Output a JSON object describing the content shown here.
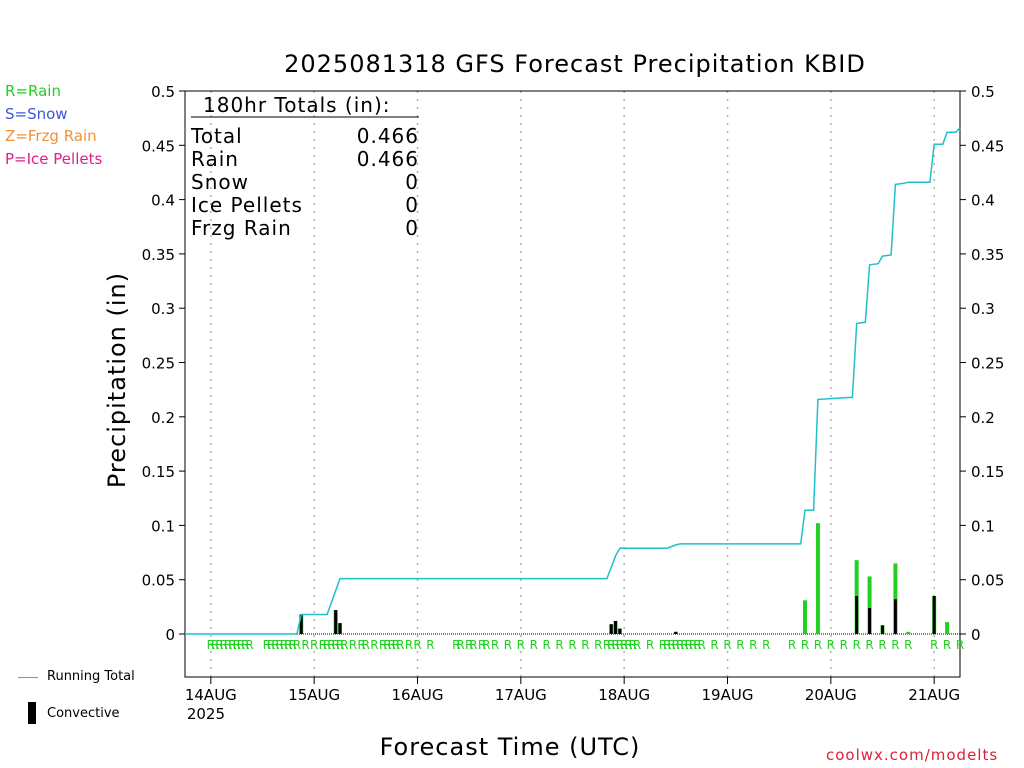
{
  "title": "2025081318 GFS Forecast Precipitation KBID",
  "xlabel": "Forecast Time (UTC)",
  "ylabel": "Precipitation (in)",
  "credit": "coolwx.com/modelts",
  "precip_key": [
    {
      "label": "R=Rain",
      "color": "#22d022"
    },
    {
      "label": "S=Snow",
      "color": "#3a55e0"
    },
    {
      "label": "Z=Frzg Rain",
      "color": "#f0903a"
    },
    {
      "label": "P=Ice Pellets",
      "color": "#e0208a"
    }
  ],
  "legend": {
    "running_total": "Running Total",
    "convective": "Convective"
  },
  "totals": {
    "header": "180hr Totals (in):",
    "rows": [
      {
        "label": "Total",
        "value": "0.466"
      },
      {
        "label": "Rain",
        "value": "0.466"
      },
      {
        "label": "Snow",
        "value": "0"
      },
      {
        "label": "Ice Pellets",
        "value": "0"
      },
      {
        "label": "Frzg Rain",
        "value": "0"
      }
    ]
  },
  "colors": {
    "running_total": "#1fc0c8",
    "precip": "#22d022",
    "convective": "#000000",
    "grid": "#b0b0b0"
  },
  "chart_data": {
    "type": "bar",
    "x_unit": "forecast hour from 2025081318",
    "ylim": [
      0,
      0.5
    ],
    "yticks": [
      "0",
      "0.05",
      "0.1",
      "0.15",
      "0.2",
      "0.25",
      "0.3",
      "0.35",
      "0.4",
      "0.45",
      "0.5"
    ],
    "xticks": [
      {
        "hour": 6,
        "label": "14AUG",
        "sub": "2025"
      },
      {
        "hour": 30,
        "label": "15AUG",
        "sub": ""
      },
      {
        "hour": 54,
        "label": "16AUG",
        "sub": ""
      },
      {
        "hour": 78,
        "label": "17AUG",
        "sub": ""
      },
      {
        "hour": 102,
        "label": "18AUG",
        "sub": ""
      },
      {
        "hour": 126,
        "label": "19AUG",
        "sub": ""
      },
      {
        "hour": 150,
        "label": "20AUG",
        "sub": ""
      },
      {
        "hour": 174,
        "label": "21AUG",
        "sub": ""
      }
    ],
    "x_range": [
      0,
      180
    ],
    "precip_bars": [
      {
        "hour": 27,
        "total": 0.018,
        "convective": 0.018
      },
      {
        "hour": 35,
        "total": 0.022,
        "convective": 0.022
      },
      {
        "hour": 36,
        "total": 0.01,
        "convective": 0.01
      },
      {
        "hour": 99,
        "total": 0.009,
        "convective": 0.009
      },
      {
        "hour": 100,
        "total": 0.012,
        "convective": 0.012
      },
      {
        "hour": 101,
        "total": 0.005,
        "convective": 0.005
      },
      {
        "hour": 114,
        "total": 0.002,
        "convective": 0.002
      },
      {
        "hour": 144,
        "total": 0.031,
        "convective": 0.0
      },
      {
        "hour": 147,
        "total": 0.102,
        "convective": 0.0
      },
      {
        "hour": 156,
        "total": 0.068,
        "convective": 0.035
      },
      {
        "hour": 159,
        "total": 0.053,
        "convective": 0.024
      },
      {
        "hour": 162,
        "total": 0.008,
        "convective": 0.008
      },
      {
        "hour": 165,
        "total": 0.065,
        "convective": 0.032
      },
      {
        "hour": 168,
        "total": 0.002,
        "convective": 0.0
      },
      {
        "hour": 174,
        "total": 0.035,
        "convective": 0.035
      },
      {
        "hour": 177,
        "total": 0.011,
        "convective": 0.0
      }
    ],
    "running_total": [
      [
        0,
        0
      ],
      [
        26,
        0
      ],
      [
        27,
        0.018
      ],
      [
        33,
        0.018
      ],
      [
        35,
        0.04
      ],
      [
        36,
        0.051
      ],
      [
        98,
        0.051
      ],
      [
        100,
        0.072
      ],
      [
        101,
        0.079
      ],
      [
        112,
        0.079
      ],
      [
        114,
        0.082
      ],
      [
        115,
        0.083
      ],
      [
        143,
        0.083
      ],
      [
        144,
        0.114
      ],
      [
        146,
        0.114
      ],
      [
        147,
        0.216
      ],
      [
        155,
        0.218
      ],
      [
        156,
        0.286
      ],
      [
        158,
        0.287
      ],
      [
        159,
        0.34
      ],
      [
        161,
        0.341
      ],
      [
        162,
        0.348
      ],
      [
        164,
        0.349
      ],
      [
        165,
        0.414
      ],
      [
        167,
        0.415
      ],
      [
        168,
        0.416
      ],
      [
        173,
        0.416
      ],
      [
        174,
        0.451
      ],
      [
        176,
        0.451
      ],
      [
        177,
        0.462
      ],
      [
        179,
        0.462
      ],
      [
        180,
        0.466
      ]
    ],
    "type_marks": {
      "symbol": "R",
      "hours": [
        6,
        7,
        8,
        9,
        10,
        11,
        12,
        13,
        14,
        15,
        19,
        20,
        21,
        22,
        23,
        24,
        25,
        26,
        28,
        30,
        32,
        33,
        34,
        35,
        36,
        37,
        39,
        41,
        42,
        44,
        46,
        47,
        48,
        49,
        50,
        52,
        54,
        57,
        63,
        64,
        66,
        67,
        69,
        70,
        72,
        75,
        78,
        81,
        84,
        87,
        90,
        93,
        96,
        98,
        99,
        100,
        101,
        102,
        103,
        104,
        105,
        108,
        111,
        112,
        113,
        114,
        115,
        116,
        117,
        118,
        119,
        120,
        123,
        126,
        129,
        132,
        135,
        141,
        144,
        147,
        150,
        153,
        156,
        159,
        162,
        165,
        168,
        174,
        177,
        180
      ]
    }
  }
}
